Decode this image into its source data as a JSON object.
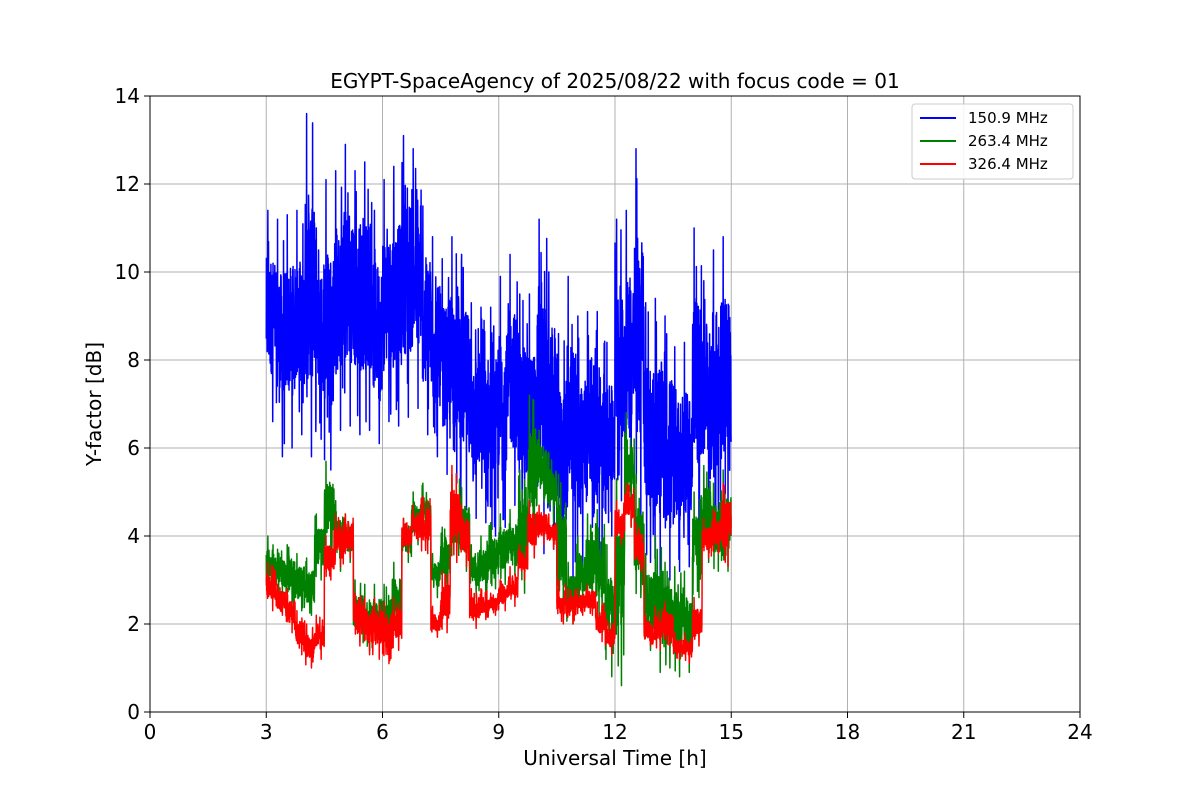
{
  "chart_data": {
    "type": "line",
    "title": "EGYPT-SpaceAgency of 2025/08/22 with focus code = 01",
    "xlabel": "Universal Time [h]",
    "ylabel": "Y-factor [dB]",
    "xlim": [
      0,
      24
    ],
    "ylim": [
      0,
      14
    ],
    "xticks": [
      0,
      3,
      6,
      9,
      12,
      15,
      18,
      21,
      24
    ],
    "yticks": [
      0,
      2,
      4,
      6,
      8,
      10,
      12,
      14
    ],
    "grid": true,
    "legend_position": "top-right",
    "series": [
      {
        "name": "150.9 MHz",
        "color": "#0000ff",
        "x": [
          3.0,
          3.25,
          3.5,
          3.75,
          4.0,
          4.25,
          4.5,
          4.75,
          5.0,
          5.25,
          5.5,
          5.75,
          6.0,
          6.25,
          6.5,
          6.75,
          7.0,
          7.25,
          7.5,
          7.75,
          8.0,
          8.25,
          8.5,
          8.75,
          9.0,
          9.25,
          9.5,
          9.75,
          10.0,
          10.25,
          10.5,
          10.75,
          11.0,
          11.25,
          11.5,
          11.75,
          12.0,
          12.25,
          12.5,
          12.75,
          13.0,
          13.25,
          13.5,
          13.75,
          14.0,
          14.25,
          14.5,
          14.75
        ],
        "y_low": [
          6.6,
          5.8,
          6.0,
          6.3,
          5.8,
          6.2,
          5.5,
          6.4,
          6.5,
          6.3,
          6.4,
          6.1,
          6.6,
          6.5,
          6.7,
          6.9,
          6.3,
          5.8,
          5.4,
          5.2,
          4.6,
          4.4,
          4.3,
          4.0,
          4.2,
          4.7,
          4.2,
          3.6,
          3.6,
          3.7,
          3.2,
          3.0,
          3.2,
          4.2,
          3.2,
          4.0,
          4.8,
          5.0,
          4.3,
          3.4,
          3.0,
          3.0,
          3.2,
          3.3,
          4.0,
          4.6,
          4.2,
          4.5
        ],
        "y_high": [
          11.4,
          11.2,
          11.3,
          11.4,
          13.6,
          11.0,
          12.1,
          12.3,
          12.9,
          12.3,
          12.5,
          11.4,
          12.1,
          12.4,
          13.1,
          12.8,
          11.5,
          10.8,
          10.3,
          10.8,
          10.4,
          9.3,
          9.2,
          9.2,
          9.9,
          10.4,
          9.5,
          9.5,
          11.2,
          10.0,
          8.6,
          9.9,
          9.0,
          9.1,
          9.1,
          8.4,
          11.2,
          11.4,
          12.8,
          9.3,
          9.4,
          9.0,
          8.3,
          8.4,
          11.0,
          9.8,
          10.5,
          10.8
        ]
      },
      {
        "name": "263.4 MHz",
        "color": "#008000",
        "x": [
          3.0,
          3.25,
          3.5,
          3.75,
          4.0,
          4.25,
          4.5,
          4.75,
          5.0,
          5.25,
          5.5,
          5.75,
          6.0,
          6.25,
          6.5,
          6.75,
          7.0,
          7.25,
          7.5,
          7.75,
          8.0,
          8.25,
          8.5,
          8.75,
          9.0,
          9.25,
          9.5,
          9.75,
          10.0,
          10.25,
          10.5,
          10.75,
          11.0,
          11.25,
          11.5,
          11.75,
          12.0,
          12.25,
          12.5,
          12.75,
          13.0,
          13.25,
          13.5,
          13.75,
          14.0,
          14.25,
          14.5,
          14.75
        ],
        "y_low": [
          2.6,
          2.6,
          2.4,
          2.3,
          2.2,
          3.0,
          3.6,
          3.2,
          3.4,
          1.6,
          1.4,
          1.5,
          1.4,
          1.8,
          3.4,
          3.8,
          3.9,
          2.6,
          2.8,
          3.4,
          3.2,
          2.6,
          2.6,
          2.8,
          2.9,
          3.1,
          2.7,
          3.9,
          4.8,
          4.3,
          2.1,
          2.0,
          2.3,
          2.3,
          2.0,
          0.8,
          0.6,
          4.2,
          2.6,
          1.4,
          0.9,
          1.0,
          0.8,
          0.9,
          2.6,
          3.4,
          3.2,
          3.2
        ],
        "y_high": [
          4.0,
          3.7,
          3.8,
          3.6,
          3.5,
          4.5,
          5.7,
          4.8,
          4.5,
          3.0,
          2.9,
          2.9,
          2.9,
          3.4,
          4.4,
          5.0,
          5.2,
          3.6,
          4.2,
          5.4,
          5.1,
          3.8,
          4.0,
          4.3,
          4.5,
          4.6,
          5.5,
          7.2,
          6.4,
          5.9,
          5.4,
          3.4,
          4.0,
          4.5,
          4.6,
          3.8,
          5.3,
          6.8,
          5.4,
          3.6,
          4.0,
          3.4,
          3.3,
          3.2,
          5.0,
          5.6,
          5.2,
          5.5
        ]
      },
      {
        "name": "326.4 MHz",
        "color": "#ff0000",
        "x": [
          3.0,
          3.25,
          3.5,
          3.75,
          4.0,
          4.25,
          4.5,
          4.75,
          5.0,
          5.25,
          5.5,
          5.75,
          6.0,
          6.25,
          6.5,
          6.75,
          7.0,
          7.25,
          7.5,
          7.75,
          8.0,
          8.25,
          8.5,
          8.75,
          9.0,
          9.25,
          9.5,
          9.75,
          10.0,
          10.25,
          10.5,
          10.75,
          11.0,
          11.25,
          11.5,
          11.75,
          12.0,
          12.25,
          12.5,
          12.75,
          13.0,
          13.25,
          13.5,
          13.75,
          14.0,
          14.25,
          14.5,
          14.75
        ],
        "y_low": [
          2.3,
          2.2,
          1.8,
          1.3,
          1.0,
          1.2,
          3.0,
          3.3,
          3.5,
          1.5,
          1.3,
          1.2,
          1.1,
          1.4,
          3.6,
          3.9,
          3.6,
          1.7,
          1.8,
          3.4,
          3.3,
          1.9,
          2.1,
          2.2,
          2.3,
          2.4,
          3.0,
          3.5,
          3.8,
          3.7,
          2.0,
          2.0,
          2.2,
          2.2,
          1.6,
          1.3,
          3.8,
          4.2,
          3.2,
          1.5,
          1.4,
          1.5,
          1.2,
          1.1,
          1.5,
          3.5,
          3.6,
          3.3
        ],
        "y_high": [
          3.4,
          2.9,
          2.8,
          2.3,
          2.0,
          2.2,
          4.0,
          4.5,
          4.5,
          2.7,
          2.6,
          2.6,
          2.5,
          2.6,
          4.4,
          4.7,
          4.9,
          2.4,
          3.2,
          5.6,
          4.7,
          2.8,
          2.8,
          2.7,
          3.0,
          3.3,
          3.8,
          4.8,
          4.7,
          4.5,
          3.0,
          2.8,
          2.8,
          2.9,
          2.5,
          2.1,
          4.8,
          5.2,
          4.3,
          2.2,
          2.4,
          2.5,
          1.8,
          1.8,
          2.6,
          4.4,
          4.6,
          5.2
        ]
      }
    ]
  }
}
